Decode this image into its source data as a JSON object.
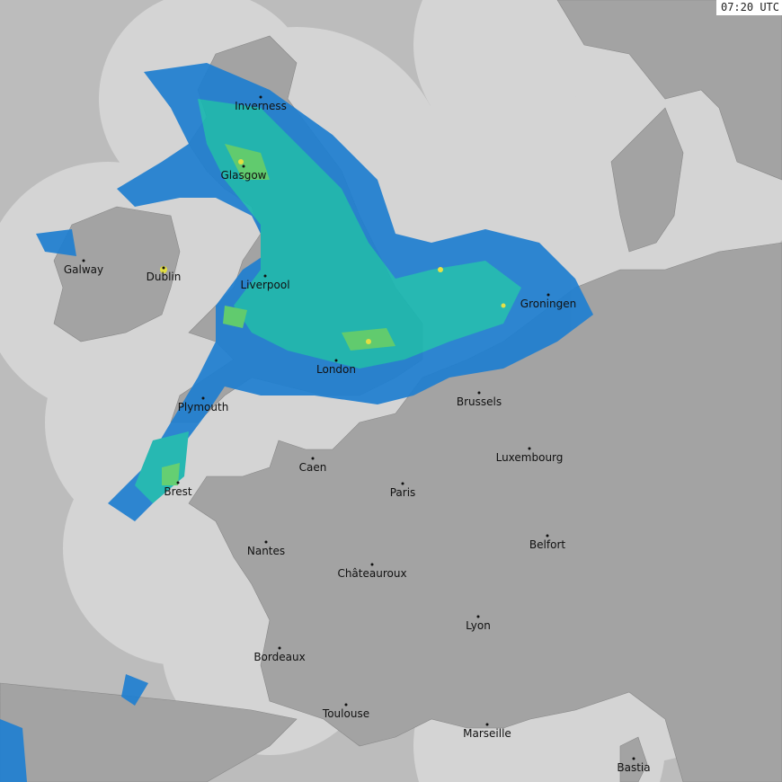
{
  "timestamp": "07:20 UTC",
  "colors": {
    "outside_coverage": "#bcbcbc",
    "sea_in_coverage": "#d4d4d4",
    "land": "#a3a3a3",
    "land_dark": "#8a8a8a",
    "border": "#8c7b7b",
    "rain_light": "#1f7fd0",
    "rain_mid": "#19b6b0",
    "rain_heavy": "#5ccf6a",
    "rain_intense": "#e8e33a"
  },
  "cities": [
    "Inverness",
    "Glasgow",
    "Galway",
    "Dublin",
    "Liverpool",
    "Groningen",
    "London",
    "Brussels",
    "Plymouth",
    "Luxembourg",
    "Caen",
    "Paris",
    "Brest",
    "Belfort",
    "Nantes",
    "Châteauroux",
    "Lyon",
    "Bordeaux",
    "Toulouse",
    "Marseille",
    "Bastia"
  ]
}
